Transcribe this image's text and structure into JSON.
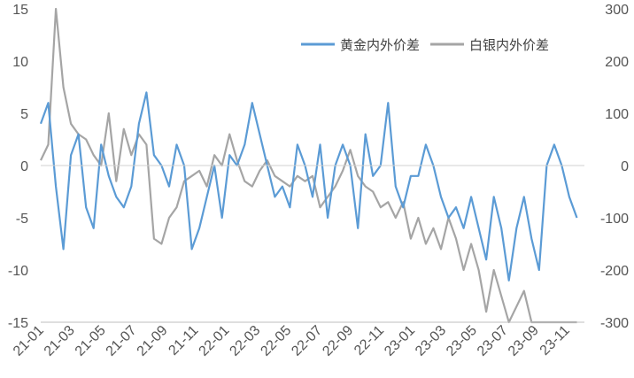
{
  "chart_data": {
    "type": "line",
    "title": "",
    "legend_position": "top-right",
    "grid": false,
    "x_tick_labels": [
      "21-01",
      "21-03",
      "21-05",
      "21-07",
      "21-09",
      "21-11",
      "22-01",
      "22-03",
      "22-05",
      "22-07",
      "22-09",
      "22-11",
      "23-01",
      "23-03",
      "23-05",
      "23-07",
      "23-09",
      "23-11"
    ],
    "y_left": {
      "range": [
        -15,
        15
      ],
      "ticks": [
        "15",
        "10",
        "5",
        "0",
        "-5",
        "-10",
        "-15"
      ]
    },
    "y_right": {
      "range": [
        -300,
        300
      ],
      "ticks": [
        "300",
        "200",
        "100",
        "0",
        "-100",
        "-200",
        "-300"
      ]
    },
    "x_range": [
      0,
      36
    ],
    "series": [
      {
        "name": "黄金内外价差",
        "axis": "left",
        "color": "#5B9BD5",
        "x": [
          0,
          0.5,
          1,
          1.5,
          2,
          2.5,
          3,
          3.5,
          4,
          4.5,
          5,
          5.5,
          6,
          6.5,
          7,
          7.5,
          8,
          8.5,
          9,
          9.5,
          10,
          10.5,
          11,
          11.5,
          12,
          12.5,
          13,
          13.5,
          14,
          14.5,
          15,
          15.5,
          16,
          16.5,
          17,
          17.5,
          18,
          18.5,
          19,
          19.5,
          20,
          20.5,
          21,
          21.5,
          22,
          22.5,
          23,
          23.5,
          24,
          24.5,
          25,
          25.5,
          26,
          26.5,
          27,
          27.5,
          28,
          28.5,
          29,
          29.5,
          30,
          30.5,
          31,
          31.5,
          32,
          32.5,
          33,
          33.5,
          34,
          34.5,
          35,
          35.5
        ],
        "values": [
          4,
          6,
          -2,
          -8,
          1,
          3,
          -4,
          -6,
          2,
          -1,
          -3,
          -4,
          -2,
          4,
          7,
          1,
          0,
          -2,
          2,
          0,
          -8,
          -6,
          -3,
          0,
          -5,
          1,
          0,
          2,
          6,
          3,
          0,
          -3,
          -2,
          -4,
          2,
          0,
          -3,
          2,
          -5,
          0,
          2,
          0,
          -6,
          3,
          -1,
          0,
          6,
          -2,
          -4,
          -1,
          -1,
          2,
          0,
          -3,
          -5,
          -4,
          -6,
          -3,
          -6,
          -9,
          -3,
          -6,
          -11,
          -6,
          -3,
          -7,
          -10,
          0,
          2,
          0,
          -3,
          -5
        ]
      },
      {
        "name": "白银内外价差",
        "axis": "right",
        "color": "#A5A5A5",
        "x": [
          0,
          0.5,
          1,
          1.5,
          2,
          2.5,
          3,
          3.5,
          4,
          4.5,
          5,
          5.5,
          6,
          6.5,
          7,
          7.5,
          8,
          8.5,
          9,
          9.5,
          10,
          10.5,
          11,
          11.5,
          12,
          12.5,
          13,
          13.5,
          14,
          14.5,
          15,
          15.5,
          16,
          16.5,
          17,
          17.5,
          18,
          18.5,
          19,
          19.5,
          20,
          20.5,
          21,
          21.5,
          22,
          22.5,
          23,
          23.5,
          24,
          24.5,
          25,
          25.5,
          26,
          26.5,
          27,
          27.5,
          28,
          28.5,
          29,
          29.5,
          30,
          30.5,
          31,
          31.5,
          32,
          32.5,
          33,
          33.5,
          34,
          34.5,
          35,
          35.5
        ],
        "values": [
          10,
          40,
          300,
          150,
          80,
          60,
          50,
          20,
          0,
          100,
          -30,
          70,
          20,
          60,
          40,
          -140,
          -150,
          -100,
          -80,
          -30,
          -20,
          -10,
          -40,
          20,
          0,
          60,
          10,
          -30,
          -40,
          -10,
          10,
          -20,
          -30,
          -40,
          -20,
          -30,
          -20,
          -80,
          -60,
          -40,
          -10,
          30,
          -20,
          -40,
          -50,
          -80,
          -70,
          -100,
          -70,
          -140,
          -100,
          -150,
          -120,
          -160,
          -100,
          -140,
          -200,
          -150,
          -200,
          -280,
          -200,
          -250,
          -300,
          -270,
          -240,
          -300,
          -300,
          -300,
          -300,
          -300,
          -300,
          -300
        ]
      }
    ]
  }
}
